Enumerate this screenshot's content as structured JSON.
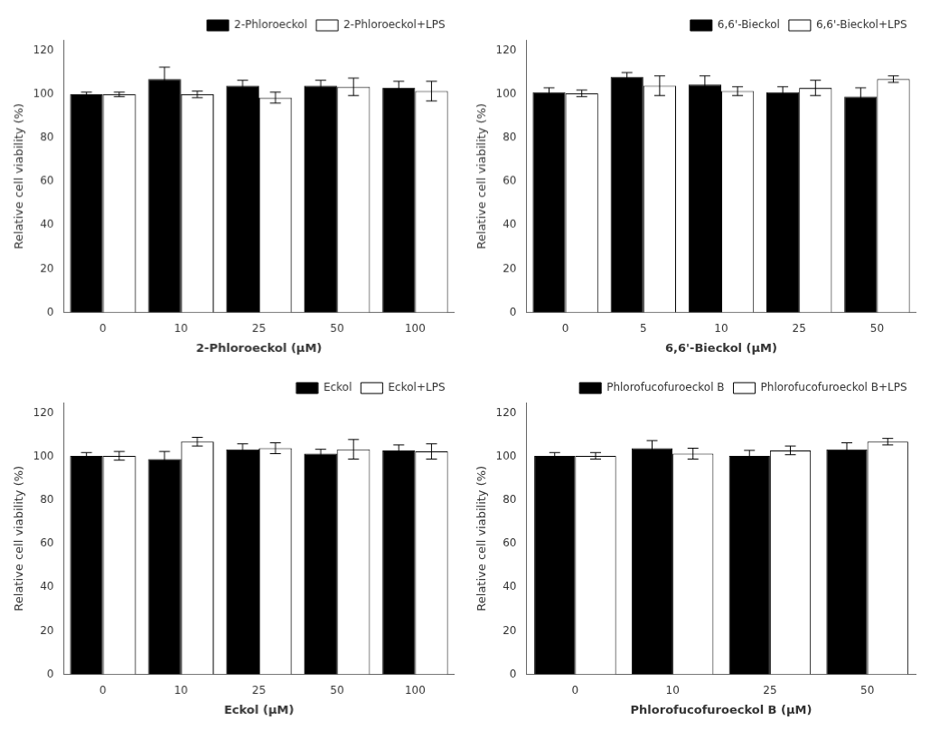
{
  "chart_data": [
    {
      "type": "bar",
      "x_label": "2-Phloroeckol (μM)",
      "y_label": "Relative cell viability (%)",
      "categories": [
        "0",
        "10",
        "25",
        "50",
        "100"
      ],
      "series": [
        {
          "name": "2-Phloroeckol",
          "color": "#000000",
          "values": [
            100,
            107,
            104,
            104,
            103
          ],
          "errors": [
            1.0,
            5.5,
            2.5,
            2.5,
            3.0
          ]
        },
        {
          "name": "2-Phloroeckol+LPS",
          "color": "#ffffff",
          "values": [
            100,
            100,
            98.5,
            103.5,
            101.5
          ],
          "errors": [
            1.0,
            1.5,
            2.5,
            4.0,
            4.5
          ]
        }
      ],
      "ylim": [
        0,
        125
      ],
      "yticks": [
        0,
        20,
        40,
        60,
        80,
        100,
        120
      ],
      "grid": false,
      "legend": "upper right"
    },
    {
      "type": "bar",
      "x_label": "6,6'-Bieckol (μM)",
      "y_label": "Relative cell viability (%)",
      "categories": [
        "0",
        "5",
        "10",
        "25",
        "50"
      ],
      "series": [
        {
          "name": "6,6'-Bieckol",
          "color": "#000000",
          "values": [
            101,
            108,
            104.5,
            101,
            99
          ],
          "errors": [
            2.0,
            2.0,
            4.0,
            2.5,
            4.0
          ]
        },
        {
          "name": "6,6'-Bieckol+LPS",
          "color": "#ffffff",
          "values": [
            100.5,
            104,
            101.5,
            103,
            107
          ],
          "errors": [
            1.5,
            4.5,
            2.0,
            3.5,
            1.5
          ]
        }
      ],
      "ylim": [
        0,
        125
      ],
      "yticks": [
        0,
        20,
        40,
        60,
        80,
        100,
        120
      ],
      "grid": false,
      "legend": "upper right"
    },
    {
      "type": "bar",
      "x_label": "Eckol (μM)",
      "y_label": "Relative cell viability (%)",
      "categories": [
        "0",
        "10",
        "25",
        "50",
        "100"
      ],
      "series": [
        {
          "name": "Eckol",
          "color": "#000000",
          "values": [
            100.5,
            99,
            103.5,
            101.5,
            103
          ],
          "errors": [
            1.5,
            3.5,
            2.5,
            2.0,
            2.5
          ]
        },
        {
          "name": "Eckol+LPS",
          "color": "#ffffff",
          "values": [
            100.5,
            107,
            104,
            103.5,
            102.5
          ],
          "errors": [
            2.0,
            2.0,
            2.5,
            4.5,
            3.5
          ]
        }
      ],
      "ylim": [
        0,
        125
      ],
      "yticks": [
        0,
        20,
        40,
        60,
        80,
        100,
        120
      ],
      "grid": false,
      "legend": "upper right"
    },
    {
      "type": "bar",
      "x_label": "Phlorofucofuroeckol B (μM)",
      "y_label": "Relative cell viability (%)",
      "categories": [
        "0",
        "10",
        "25",
        "50"
      ],
      "series": [
        {
          "name": "Phlorofucofuroeckol B",
          "color": "#000000",
          "values": [
            100.5,
            104,
            100.5,
            103.5
          ],
          "errors": [
            1.5,
            3.5,
            2.5,
            3.0
          ]
        },
        {
          "name": "Phlorofucofuroeckol B+LPS",
          "color": "#ffffff",
          "values": [
            100.5,
            101.5,
            103,
            107
          ],
          "errors": [
            1.5,
            2.5,
            2.0,
            1.5
          ]
        }
      ],
      "ylim": [
        0,
        125
      ],
      "yticks": [
        0,
        20,
        40,
        60,
        80,
        100,
        120
      ],
      "grid": false,
      "legend": "upper right"
    }
  ]
}
